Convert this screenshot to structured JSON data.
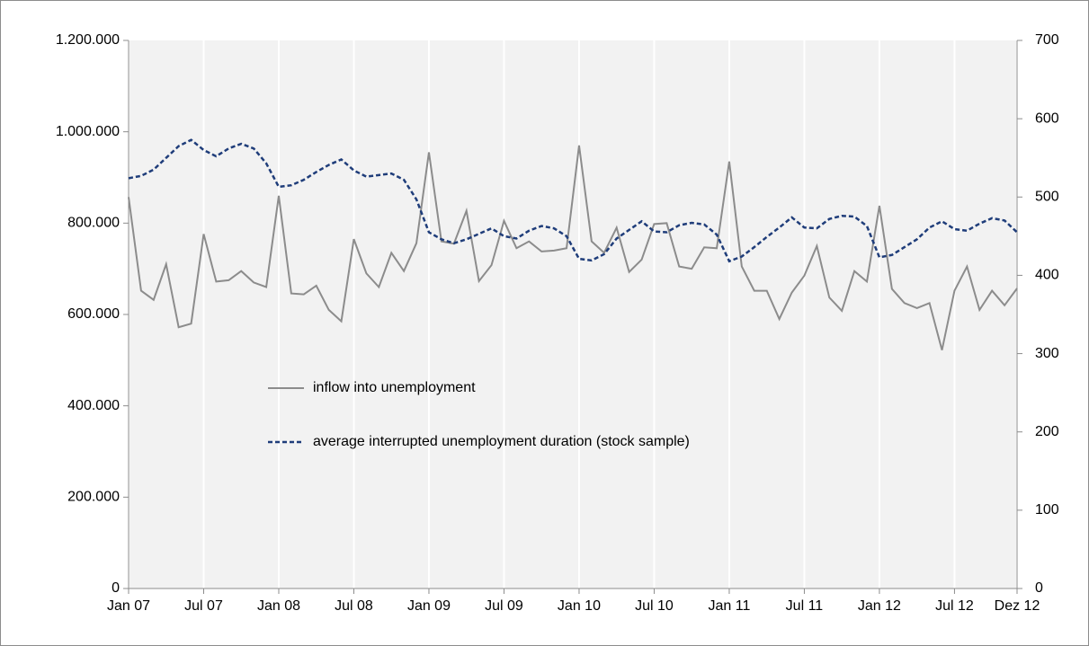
{
  "chart_data": {
    "type": "line",
    "categories": [
      "Jan 07",
      null,
      null,
      null,
      null,
      null,
      "Jul 07",
      null,
      null,
      null,
      null,
      null,
      "Jan 08",
      null,
      null,
      null,
      null,
      null,
      "Jul 08",
      null,
      null,
      null,
      null,
      null,
      "Jan 09",
      null,
      null,
      null,
      null,
      null,
      "Jul 09",
      null,
      null,
      null,
      null,
      null,
      "Jan 10",
      null,
      null,
      null,
      null,
      null,
      "Jul 10",
      null,
      null,
      null,
      null,
      null,
      "Jan 11",
      null,
      null,
      null,
      null,
      null,
      "Jul 11",
      null,
      null,
      null,
      null,
      null,
      "Jan 12",
      null,
      null,
      null,
      null,
      null,
      "Jul 12",
      null,
      null,
      null,
      null,
      "Dez 12"
    ],
    "series": [
      {
        "name": "inflow into unemployment",
        "color": "#8c8c8c",
        "dash": false,
        "axis": "y",
        "values": [
          857000,
          652000,
          632000,
          710000,
          572000,
          580000,
          776000,
          672000,
          675000,
          695000,
          670000,
          660000,
          860000,
          646000,
          644000,
          663000,
          610000,
          585000,
          765000,
          690000,
          660000,
          735000,
          695000,
          756000,
          955000,
          760000,
          755000,
          827000,
          673000,
          708000,
          805000,
          745000,
          760000,
          738000,
          740000,
          745000,
          970000,
          760000,
          735000,
          790000,
          693000,
          720000,
          798000,
          800000,
          705000,
          700000,
          747000,
          745000,
          935000,
          705000,
          652000,
          652000,
          590000,
          648000,
          685000,
          750000,
          637000,
          608000,
          695000,
          672000,
          838000,
          656000,
          625000,
          614000,
          625000,
          522000,
          652000,
          705000,
          610000,
          652000,
          620000,
          657000
        ]
      },
      {
        "name": "average interrupted unemployment duration (stock sample)",
        "color": "#1f3d7a",
        "dash": true,
        "axis": "y2",
        "values": [
          524,
          527,
          535,
          550,
          565,
          573,
          560,
          552,
          562,
          568,
          562,
          543,
          513,
          515,
          522,
          532,
          541,
          548,
          534,
          526,
          528,
          530,
          522,
          497,
          455,
          446,
          441,
          446,
          453,
          460,
          450,
          447,
          457,
          463,
          460,
          450,
          421,
          419,
          427,
          447,
          458,
          469,
          456,
          455,
          464,
          467,
          465,
          452,
          418,
          424,
          436,
          449,
          461,
          474,
          461,
          460,
          472,
          476,
          475,
          463,
          423,
          426,
          436,
          446,
          461,
          469,
          459,
          457,
          466,
          473,
          470,
          455
        ]
      }
    ],
    "ylim": [
      0,
      1200000
    ],
    "yticks": [
      0,
      {
        "value": 200000,
        "label": "200.000"
      },
      {
        "value": 400000,
        "label": "400.000"
      },
      {
        "value": 600000,
        "label": "600.000"
      },
      {
        "value": 800000,
        "label": "800.000"
      },
      {
        "value": 1000000,
        "label": "1.000.000"
      },
      {
        "value": 1200000,
        "label": "1.200.000"
      }
    ],
    "y2lim": [
      0,
      700
    ],
    "y2ticks": [
      0,
      100,
      200,
      300,
      400,
      500,
      600,
      700
    ],
    "grid": true
  }
}
